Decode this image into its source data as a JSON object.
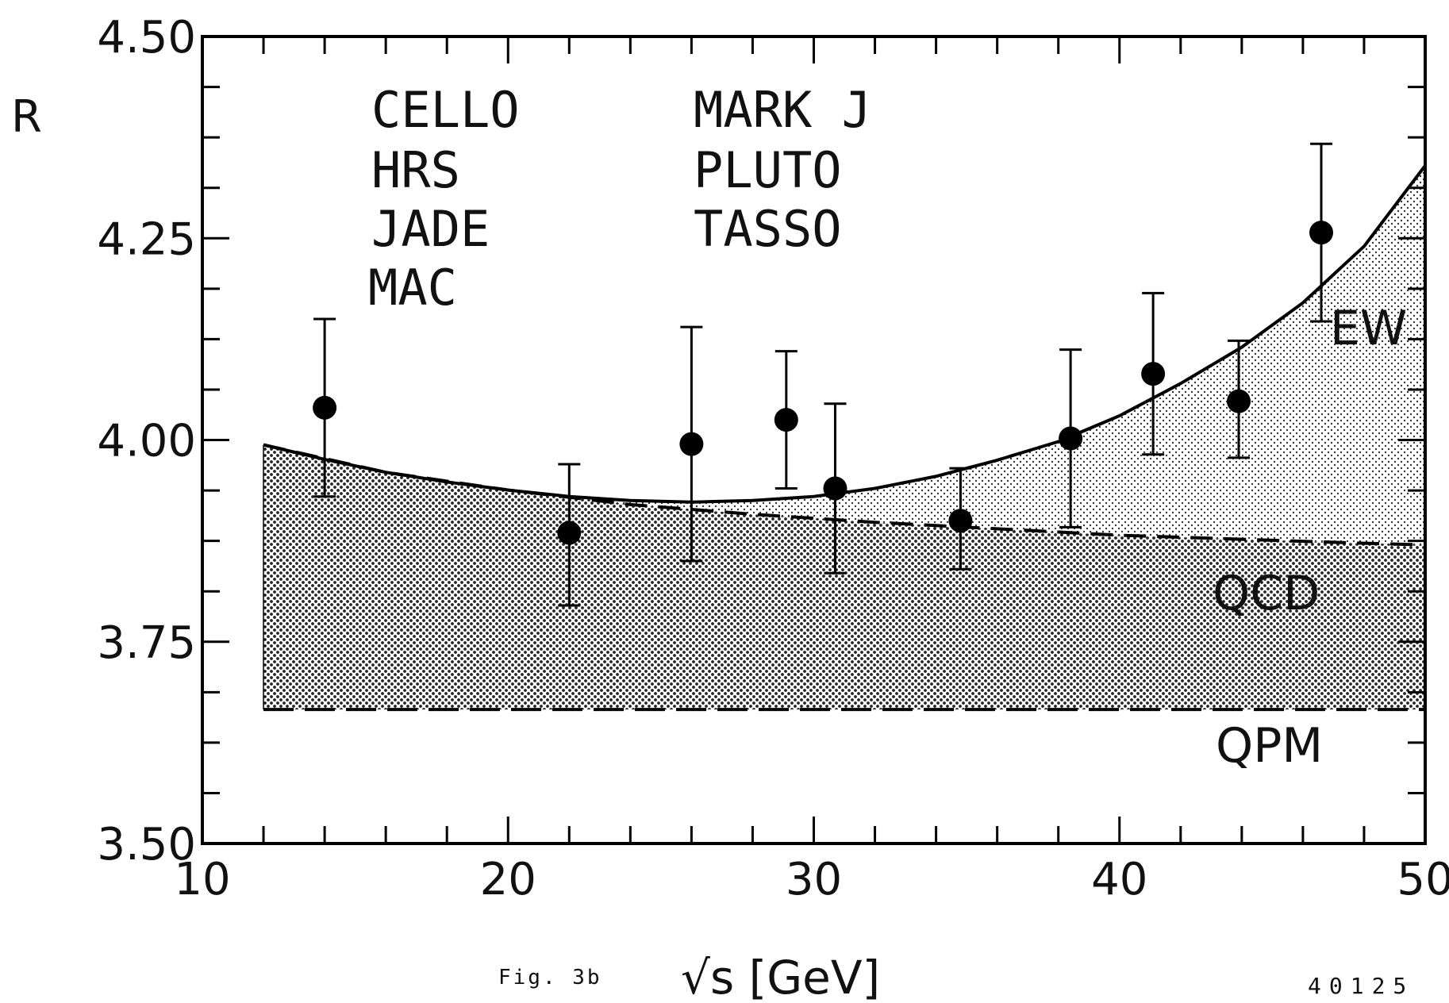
{
  "chart_data": {
    "type": "scatter",
    "xlabel": "√s [GeV]",
    "ylabel": "R",
    "xlim": [
      10,
      50
    ],
    "ylim": [
      3.5,
      4.5
    ],
    "x_ticks": [
      10,
      20,
      30,
      40,
      50
    ],
    "x_tick_labels": [
      "10",
      "20",
      "30",
      "40",
      "50"
    ],
    "y_ticks": [
      3.5,
      3.75,
      4.0,
      4.25,
      4.5
    ],
    "y_tick_labels": [
      "3.50",
      "3.75",
      "4.00",
      "4.25",
      "4.50"
    ],
    "x_minor_step": 2,
    "y_minor_step": 0.0625,
    "grid": false,
    "experiments_col1": [
      "CELLO",
      "HRS",
      "JADE",
      "MAC"
    ],
    "experiments_col2": [
      "MARK J",
      "PLUTO",
      "TASSO"
    ],
    "points": [
      {
        "x": 14.0,
        "y": 4.04,
        "err_low": 0.11,
        "err_high": 0.11
      },
      {
        "x": 22.0,
        "y": 3.885,
        "err_low": 0.09,
        "err_high": 0.085
      },
      {
        "x": 26.0,
        "y": 3.995,
        "err_low": 0.145,
        "err_high": 0.145
      },
      {
        "x": 29.1,
        "y": 4.025,
        "err_low": 0.085,
        "err_high": 0.085
      },
      {
        "x": 30.7,
        "y": 3.94,
        "err_low": 0.105,
        "err_high": 0.105
      },
      {
        "x": 34.8,
        "y": 3.9,
        "err_low": 0.06,
        "err_high": 0.065
      },
      {
        "x": 38.4,
        "y": 4.002,
        "err_low": 0.11,
        "err_high": 0.11
      },
      {
        "x": 41.1,
        "y": 4.082,
        "err_low": 0.1,
        "err_high": 0.1
      },
      {
        "x": 43.9,
        "y": 4.048,
        "err_low": 0.07,
        "err_high": 0.075
      },
      {
        "x": 46.6,
        "y": 4.257,
        "err_low": 0.11,
        "err_high": 0.11
      }
    ],
    "curves": {
      "EW": {
        "label": "EW",
        "x": [
          12,
          14,
          16,
          18,
          20,
          22,
          24,
          26,
          28,
          30,
          32,
          34,
          36,
          38,
          40,
          42,
          44,
          46,
          48,
          50
        ],
        "y": [
          3.994,
          3.976,
          3.96,
          3.948,
          3.938,
          3.93,
          3.925,
          3.923,
          3.925,
          3.93,
          3.94,
          3.955,
          3.975,
          3.998,
          4.03,
          4.07,
          4.115,
          4.17,
          4.24,
          4.34
        ]
      },
      "QCD": {
        "label": "QCD",
        "x": [
          12,
          16,
          20,
          24,
          28,
          32,
          36,
          40,
          44,
          48,
          50
        ],
        "y": [
          3.994,
          3.96,
          3.938,
          3.92,
          3.908,
          3.898,
          3.89,
          3.882,
          3.877,
          3.872,
          3.87
        ]
      },
      "QPM": {
        "label": "QPM",
        "x": [
          12,
          50
        ],
        "y": [
          3.666,
          3.666
        ]
      }
    }
  },
  "caption": {
    "fig_label": "Fig. 3b",
    "code": "40125"
  }
}
